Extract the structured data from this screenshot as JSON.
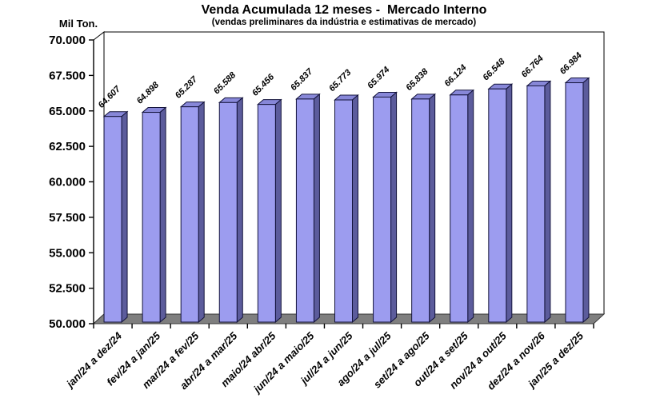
{
  "chart_data": {
    "type": "bar",
    "style_3d": true,
    "title": "Venda Acumulada 12 meses -  Mercado Interno",
    "subtitle": "(vendas preliminares da indústria e estimativas de mercado)",
    "unit_label": "Mil Ton.",
    "xlabel": "",
    "ylabel": "Mil Ton.",
    "ylim": [
      50000,
      70000
    ],
    "y_tick_step": 2500,
    "grid": false,
    "legend_position": "none",
    "y_ticks": [
      {
        "value": 50000,
        "label": "50.000"
      },
      {
        "value": 52500,
        "label": "52.500"
      },
      {
        "value": 55000,
        "label": "55.000"
      },
      {
        "value": 57500,
        "label": "57.500"
      },
      {
        "value": 60000,
        "label": "60.000"
      },
      {
        "value": 62500,
        "label": "62.500"
      },
      {
        "value": 65000,
        "label": "65.000"
      },
      {
        "value": 67500,
        "label": "67.500"
      },
      {
        "value": 70000,
        "label": "70.000"
      }
    ],
    "categories": [
      "jan/24 a dez/24",
      "fev/24 a jan/25",
      "mar/24 a fev/25",
      "abr/24 a mar/25",
      "maio/24 abr/25",
      "jun/24 a maio/25",
      "jul/24 a jun/25",
      "ago/24 a jul/25",
      "set/24 a ago/25",
      "out/24 a set/25",
      "nov/24 a out/25",
      "dez/24 a nov/26",
      "jan/25 a dez/25"
    ],
    "values": [
      64607,
      64898,
      65287,
      65588,
      65456,
      65837,
      65773,
      65974,
      65838,
      66124,
      66548,
      66764,
      66984
    ],
    "value_labels": [
      "64.607",
      "64.898",
      "65.287",
      "65.588",
      "65.456",
      "65.837",
      "65.773",
      "65.974",
      "65.838",
      "66.124",
      "66.548",
      "66.764",
      "66.984"
    ],
    "colors": {
      "bar_front": "#9C9CEF",
      "bar_top": "#8787D8",
      "bar_side": "#5C5C9C",
      "bar_border": "#14143C",
      "floor": "#7F7F7F",
      "floor_border": "#3A3A3A",
      "wall_fill": "#FFFFFF",
      "wall_border": "#000000",
      "axis": "#000000",
      "text": "#000000",
      "background": "#FFFFFF"
    }
  }
}
